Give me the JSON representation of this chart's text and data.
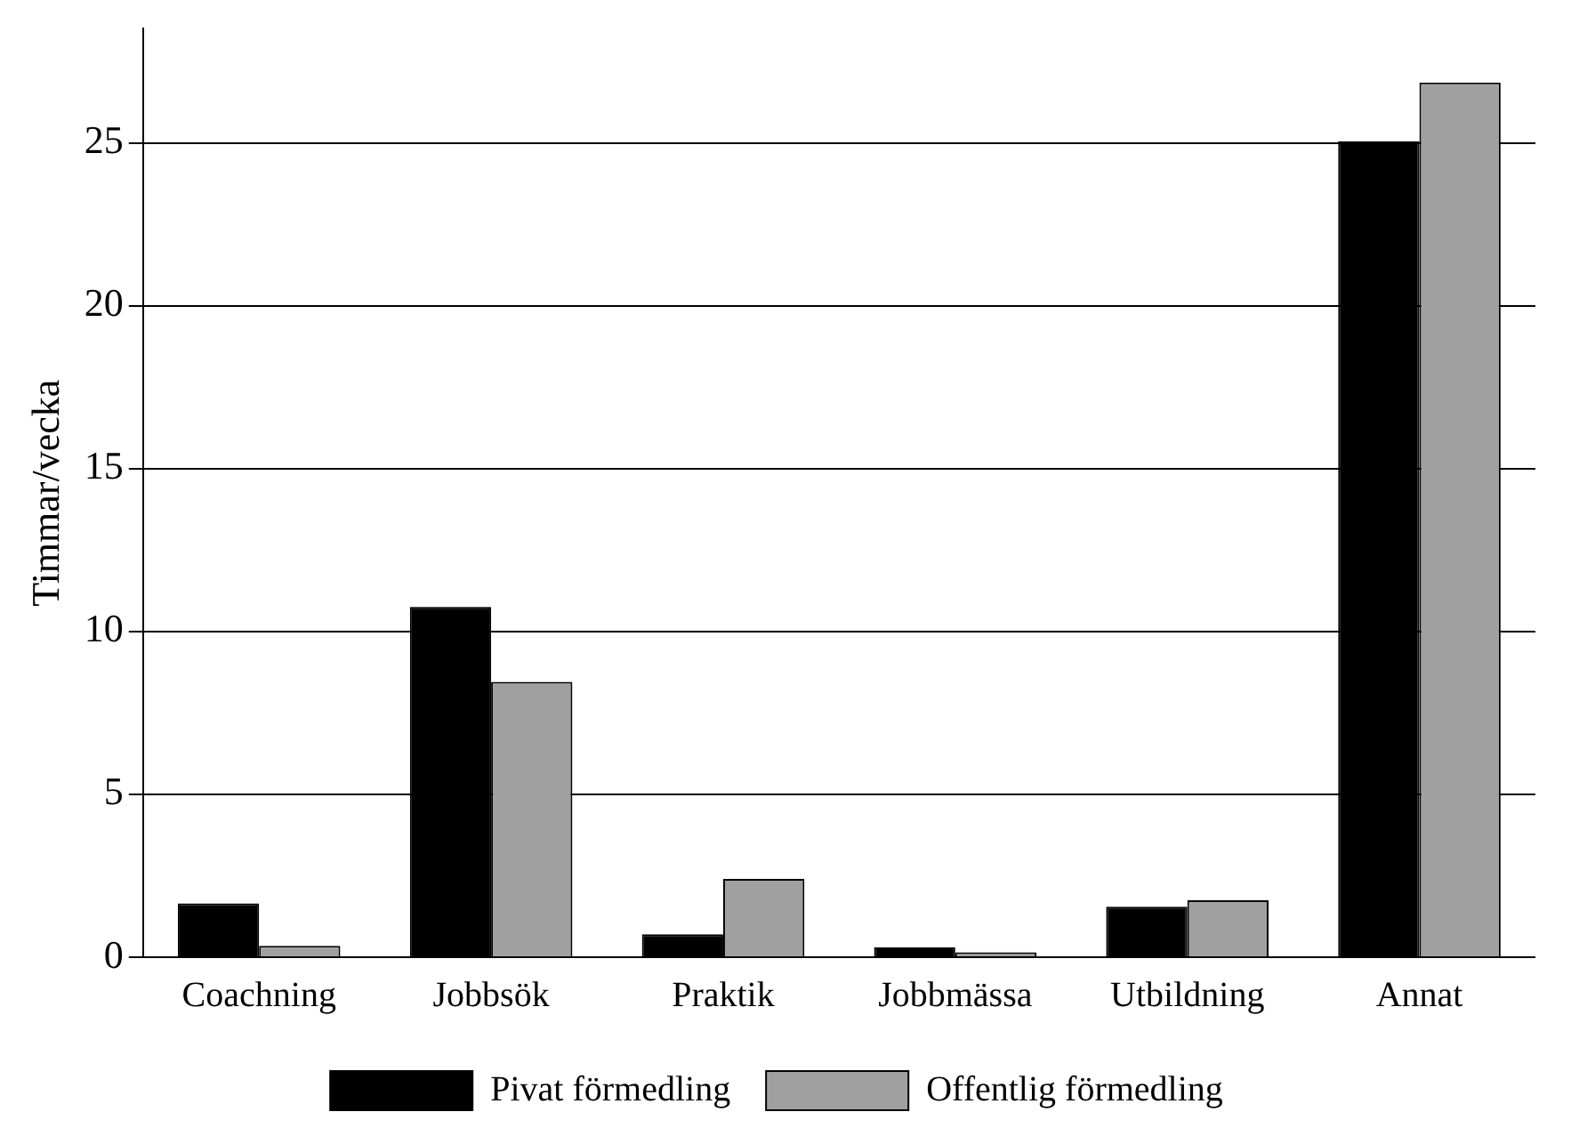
{
  "chart_data": {
    "type": "bar",
    "ylabel": "Timmar/vecka",
    "categories": [
      "Coachning",
      "Jobbsök",
      "Praktik",
      "Jobbmässa",
      "Utbildning",
      "Annat"
    ],
    "series": [
      {
        "name": "Pivat förmedling",
        "color": "#000000",
        "values": [
          1.65,
          10.75,
          0.7,
          0.3,
          1.55,
          25.05
        ]
      },
      {
        "name": "Offentlig förmedling",
        "color": "#a0a0a0",
        "values": [
          0.35,
          8.45,
          2.4,
          0.15,
          1.75,
          26.85
        ]
      }
    ],
    "ylim": [
      0,
      28.5
    ],
    "yticks": [
      0,
      5,
      10,
      15,
      20,
      25
    ],
    "grid": "y",
    "legend": "bottom"
  }
}
